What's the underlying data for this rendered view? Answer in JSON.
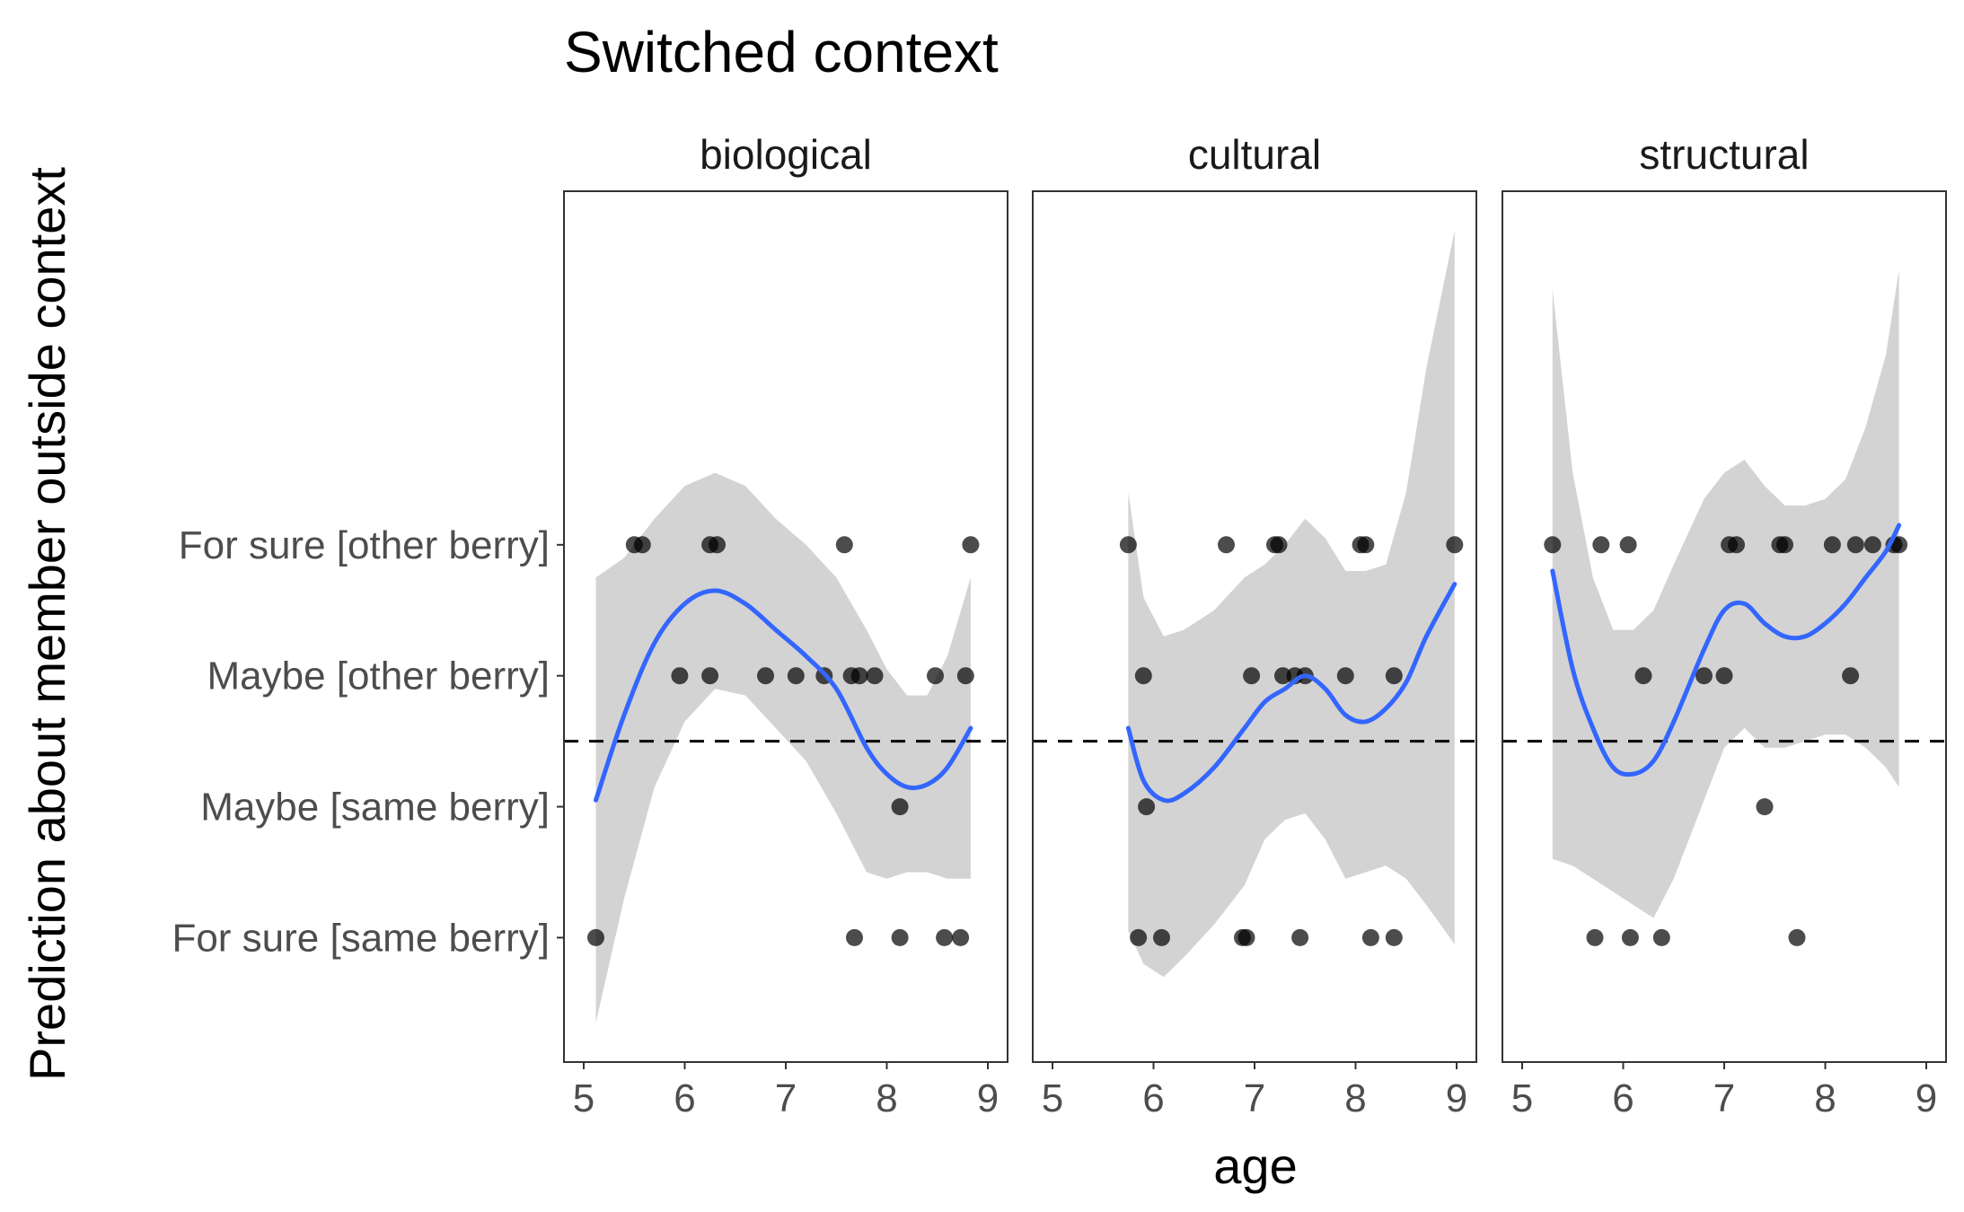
{
  "chart_data": {
    "type": "scatter",
    "title": "Switched context",
    "xlabel": "age",
    "ylabel": "Prediction about member outside context",
    "xlim": [
      5,
      9
    ],
    "xticks": [
      5,
      6,
      7,
      8,
      9
    ],
    "ylim": [
      0.05,
      6.7
    ],
    "y_categories": [
      "For sure [same berry]",
      "Maybe [same berry]",
      "Maybe [other berry]",
      "For sure [other berry]"
    ],
    "reference_line": {
      "y": 2.5,
      "style": "dashed"
    },
    "colors": {
      "smooth": "#3366ff",
      "ribbon": "#d3d3d3",
      "points": "#000000"
    },
    "panels": [
      {
        "label": "biological",
        "points": [
          {
            "x": 5.5,
            "y": 4
          },
          {
            "x": 5.58,
            "y": 4
          },
          {
            "x": 6.25,
            "y": 4
          },
          {
            "x": 6.32,
            "y": 4
          },
          {
            "x": 7.58,
            "y": 4
          },
          {
            "x": 8.83,
            "y": 4
          },
          {
            "x": 5.95,
            "y": 3
          },
          {
            "x": 6.25,
            "y": 3
          },
          {
            "x": 6.8,
            "y": 3
          },
          {
            "x": 7.1,
            "y": 3
          },
          {
            "x": 7.38,
            "y": 3
          },
          {
            "x": 7.65,
            "y": 3
          },
          {
            "x": 7.73,
            "y": 3
          },
          {
            "x": 7.88,
            "y": 3
          },
          {
            "x": 8.48,
            "y": 3
          },
          {
            "x": 8.78,
            "y": 3
          },
          {
            "x": 8.13,
            "y": 2
          },
          {
            "x": 5.12,
            "y": 1
          },
          {
            "x": 7.68,
            "y": 1
          },
          {
            "x": 8.13,
            "y": 1
          },
          {
            "x": 8.57,
            "y": 1
          },
          {
            "x": 8.73,
            "y": 1
          }
        ],
        "smooth": [
          {
            "x": 5.12,
            "y": 2.05,
            "lo": 0.35,
            "hi": 3.75
          },
          {
            "x": 5.4,
            "y": 2.7,
            "lo": 1.3,
            "hi": 3.9
          },
          {
            "x": 5.7,
            "y": 3.25,
            "lo": 2.15,
            "hi": 4.2
          },
          {
            "x": 6.0,
            "y": 3.55,
            "lo": 2.65,
            "hi": 4.45
          },
          {
            "x": 6.3,
            "y": 3.65,
            "lo": 2.9,
            "hi": 4.55
          },
          {
            "x": 6.6,
            "y": 3.55,
            "lo": 2.85,
            "hi": 4.45
          },
          {
            "x": 6.9,
            "y": 3.35,
            "lo": 2.6,
            "hi": 4.2
          },
          {
            "x": 7.2,
            "y": 3.15,
            "lo": 2.35,
            "hi": 4.0
          },
          {
            "x": 7.5,
            "y": 2.9,
            "lo": 1.95,
            "hi": 3.75
          },
          {
            "x": 7.8,
            "y": 2.45,
            "lo": 1.5,
            "hi": 3.35
          },
          {
            "x": 8.0,
            "y": 2.25,
            "lo": 1.45,
            "hi": 3.05
          },
          {
            "x": 8.2,
            "y": 2.15,
            "lo": 1.5,
            "hi": 2.85
          },
          {
            "x": 8.4,
            "y": 2.17,
            "lo": 1.5,
            "hi": 2.85
          },
          {
            "x": 8.6,
            "y": 2.3,
            "lo": 1.45,
            "hi": 3.15
          },
          {
            "x": 8.83,
            "y": 2.6,
            "lo": 1.45,
            "hi": 3.75
          }
        ]
      },
      {
        "label": "cultural",
        "points": [
          {
            "x": 5.75,
            "y": 4
          },
          {
            "x": 6.72,
            "y": 4
          },
          {
            "x": 7.2,
            "y": 4
          },
          {
            "x": 7.24,
            "y": 4
          },
          {
            "x": 8.05,
            "y": 4
          },
          {
            "x": 8.1,
            "y": 4
          },
          {
            "x": 8.98,
            "y": 4
          },
          {
            "x": 5.9,
            "y": 3
          },
          {
            "x": 6.97,
            "y": 3
          },
          {
            "x": 7.28,
            "y": 3
          },
          {
            "x": 7.4,
            "y": 3
          },
          {
            "x": 7.5,
            "y": 3
          },
          {
            "x": 7.9,
            "y": 3
          },
          {
            "x": 8.38,
            "y": 3
          },
          {
            "x": 5.93,
            "y": 2
          },
          {
            "x": 5.85,
            "y": 1
          },
          {
            "x": 6.08,
            "y": 1
          },
          {
            "x": 6.88,
            "y": 1
          },
          {
            "x": 6.92,
            "y": 1
          },
          {
            "x": 7.45,
            "y": 1
          },
          {
            "x": 8.15,
            "y": 1
          },
          {
            "x": 8.38,
            "y": 1
          }
        ],
        "smooth": [
          {
            "x": 5.75,
            "y": 2.6,
            "lo": 1.05,
            "hi": 4.4
          },
          {
            "x": 5.9,
            "y": 2.2,
            "lo": 0.8,
            "hi": 3.6
          },
          {
            "x": 6.1,
            "y": 2.05,
            "lo": 0.7,
            "hi": 3.3
          },
          {
            "x": 6.3,
            "y": 2.1,
            "lo": 0.85,
            "hi": 3.35
          },
          {
            "x": 6.6,
            "y": 2.3,
            "lo": 1.1,
            "hi": 3.5
          },
          {
            "x": 6.9,
            "y": 2.6,
            "lo": 1.4,
            "hi": 3.75
          },
          {
            "x": 7.1,
            "y": 2.8,
            "lo": 1.75,
            "hi": 3.85
          },
          {
            "x": 7.3,
            "y": 2.9,
            "lo": 1.9,
            "hi": 4.0
          },
          {
            "x": 7.5,
            "y": 3.0,
            "lo": 1.95,
            "hi": 4.2
          },
          {
            "x": 7.7,
            "y": 2.9,
            "lo": 1.75,
            "hi": 4.05
          },
          {
            "x": 7.9,
            "y": 2.7,
            "lo": 1.45,
            "hi": 3.8
          },
          {
            "x": 8.1,
            "y": 2.65,
            "lo": 1.5,
            "hi": 3.8
          },
          {
            "x": 8.3,
            "y": 2.75,
            "lo": 1.55,
            "hi": 3.85
          },
          {
            "x": 8.5,
            "y": 2.95,
            "lo": 1.45,
            "hi": 4.4
          },
          {
            "x": 8.7,
            "y": 3.3,
            "lo": 1.25,
            "hi": 5.35
          },
          {
            "x": 8.98,
            "y": 3.7,
            "lo": 0.95,
            "hi": 6.4
          }
        ]
      },
      {
        "label": "structural",
        "points": [
          {
            "x": 5.3,
            "y": 4
          },
          {
            "x": 5.78,
            "y": 4
          },
          {
            "x": 6.05,
            "y": 4
          },
          {
            "x": 7.05,
            "y": 4
          },
          {
            "x": 7.12,
            "y": 4
          },
          {
            "x": 7.55,
            "y": 4
          },
          {
            "x": 7.6,
            "y": 4
          },
          {
            "x": 8.07,
            "y": 4
          },
          {
            "x": 8.3,
            "y": 4
          },
          {
            "x": 8.47,
            "y": 4
          },
          {
            "x": 8.68,
            "y": 4
          },
          {
            "x": 8.73,
            "y": 4
          },
          {
            "x": 6.2,
            "y": 3
          },
          {
            "x": 6.8,
            "y": 3
          },
          {
            "x": 7.0,
            "y": 3
          },
          {
            "x": 8.25,
            "y": 3
          },
          {
            "x": 7.4,
            "y": 2
          },
          {
            "x": 5.72,
            "y": 1
          },
          {
            "x": 6.07,
            "y": 1
          },
          {
            "x": 6.38,
            "y": 1
          },
          {
            "x": 7.72,
            "y": 1
          }
        ],
        "smooth": [
          {
            "x": 5.3,
            "y": 3.8,
            "lo": 1.6,
            "hi": 5.95
          },
          {
            "x": 5.5,
            "y": 3.05,
            "lo": 1.55,
            "hi": 4.55
          },
          {
            "x": 5.7,
            "y": 2.6,
            "lo": 1.45,
            "hi": 3.75
          },
          {
            "x": 5.9,
            "y": 2.3,
            "lo": 1.35,
            "hi": 3.35
          },
          {
            "x": 6.1,
            "y": 2.25,
            "lo": 1.25,
            "hi": 3.35
          },
          {
            "x": 6.3,
            "y": 2.35,
            "lo": 1.15,
            "hi": 3.5
          },
          {
            "x": 6.5,
            "y": 2.65,
            "lo": 1.45,
            "hi": 3.85
          },
          {
            "x": 6.8,
            "y": 3.2,
            "lo": 2.05,
            "hi": 4.35
          },
          {
            "x": 7.0,
            "y": 3.5,
            "lo": 2.45,
            "hi": 4.55
          },
          {
            "x": 7.2,
            "y": 3.55,
            "lo": 2.6,
            "hi": 4.65
          },
          {
            "x": 7.4,
            "y": 3.4,
            "lo": 2.45,
            "hi": 4.45
          },
          {
            "x": 7.6,
            "y": 3.3,
            "lo": 2.45,
            "hi": 4.3
          },
          {
            "x": 7.8,
            "y": 3.3,
            "lo": 2.5,
            "hi": 4.3
          },
          {
            "x": 8.0,
            "y": 3.4,
            "lo": 2.55,
            "hi": 4.35
          },
          {
            "x": 8.2,
            "y": 3.55,
            "lo": 2.55,
            "hi": 4.5
          },
          {
            "x": 8.4,
            "y": 3.75,
            "lo": 2.45,
            "hi": 4.9
          },
          {
            "x": 8.6,
            "y": 3.95,
            "lo": 2.3,
            "hi": 5.45
          },
          {
            "x": 8.73,
            "y": 4.15,
            "lo": 2.15,
            "hi": 6.1
          }
        ]
      }
    ]
  }
}
